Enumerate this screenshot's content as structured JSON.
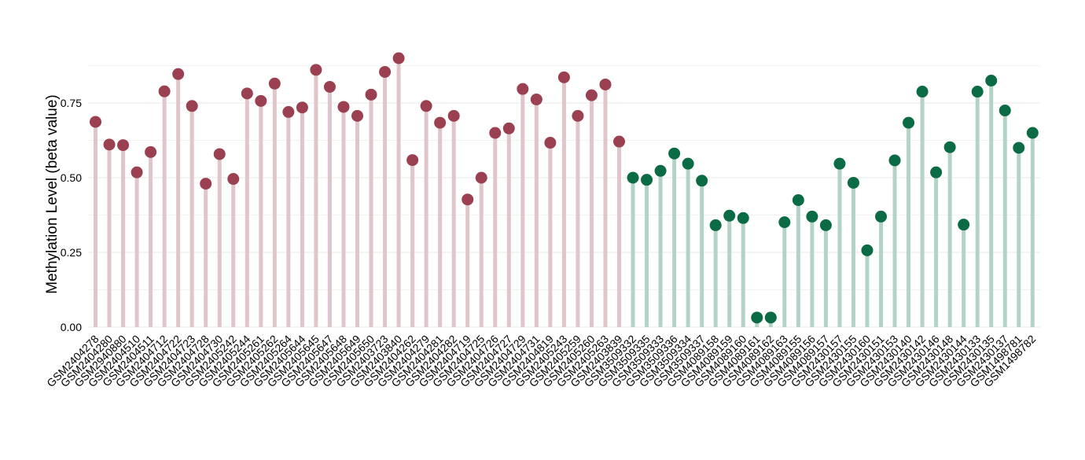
{
  "chart_data": {
    "type": "lollipop",
    "title": "",
    "xlabel": "",
    "ylabel": "Methylation Level (beta value)",
    "ylim": [
      0,
      0.96
    ],
    "yticks": [
      "0.00",
      "0.25",
      "0.50",
      "0.75"
    ],
    "ytick_values": [
      0,
      0.25,
      0.5,
      0.75
    ],
    "grid": true,
    "legend": "none",
    "colors": {
      "group1_point": "#9b4050",
      "group1_stem": "#e0c5ca",
      "group2_point": "#0b6b44",
      "group2_stem": "#b3d3c7",
      "grid": "#eeeeee"
    },
    "categories": [
      "GSM2404278",
      "GSM2404280",
      "GSM2940880",
      "GSM2404510",
      "GSM2404511",
      "GSM2404712",
      "GSM2404722",
      "GSM2404723",
      "GSM2404728",
      "GSM2404730",
      "GSM2405242",
      "GSM2405244",
      "GSM2405261",
      "GSM2405262",
      "GSM2405264",
      "GSM2405644",
      "GSM2405645",
      "GSM2405647",
      "GSM2405648",
      "GSM2405649",
      "GSM2405650",
      "GSM2403723",
      "GSM2403840",
      "GSM2404262",
      "GSM2404279",
      "GSM2404281",
      "GSM2404282",
      "GSM2404719",
      "GSM2404725",
      "GSM2404726",
      "GSM2404727",
      "GSM2404729",
      "GSM2404731",
      "GSM2404819",
      "GSM2405243",
      "GSM2405259",
      "GSM2405260",
      "GSM2405263",
      "GSM2403839",
      "GSM3509332",
      "GSM3509335",
      "GSM3509333",
      "GSM3509336",
      "GSM3509334",
      "GSM3509337",
      "GSM4089158",
      "GSM4089159",
      "GSM4089160",
      "GSM4089161",
      "GSM4089162",
      "GSM4089163",
      "GSM4089155",
      "GSM4089156",
      "GSM4089157",
      "GSM2430157",
      "GSM2430155",
      "GSM2430160",
      "GSM2430151",
      "GSM2430153",
      "GSM2430140",
      "GSM2430142",
      "GSM2430146",
      "GSM2430148",
      "GSM2430144",
      "GSM2430133",
      "GSM2430135",
      "GSM2430137",
      "GSM1498781",
      "GSM1498782"
    ],
    "values": [
      0.687,
      0.611,
      0.609,
      0.518,
      0.586,
      0.789,
      0.847,
      0.74,
      0.48,
      0.579,
      0.496,
      0.782,
      0.757,
      0.815,
      0.72,
      0.735,
      0.861,
      0.804,
      0.737,
      0.707,
      0.778,
      0.854,
      0.9,
      0.559,
      0.74,
      0.684,
      0.707,
      0.427,
      0.5,
      0.65,
      0.665,
      0.797,
      0.762,
      0.617,
      0.836,
      0.707,
      0.776,
      0.812,
      0.621,
      0.5,
      0.493,
      0.523,
      0.581,
      0.547,
      0.49,
      0.341,
      0.373,
      0.365,
      0.032,
      0.032,
      0.351,
      0.425,
      0.37,
      0.341,
      0.547,
      0.483,
      0.257,
      0.37,
      0.558,
      0.684,
      0.788,
      0.518,
      0.602,
      0.343,
      0.788,
      0.825,
      0.725,
      0.6,
      0.65
    ],
    "groups": [
      1,
      1,
      1,
      1,
      1,
      1,
      1,
      1,
      1,
      1,
      1,
      1,
      1,
      1,
      1,
      1,
      1,
      1,
      1,
      1,
      1,
      1,
      1,
      1,
      1,
      1,
      1,
      1,
      1,
      1,
      1,
      1,
      1,
      1,
      1,
      1,
      1,
      1,
      1,
      2,
      2,
      2,
      2,
      2,
      2,
      2,
      2,
      2,
      2,
      2,
      2,
      2,
      2,
      2,
      2,
      2,
      2,
      2,
      2,
      2,
      2,
      2,
      2,
      2,
      2,
      2,
      2,
      2,
      2
    ]
  }
}
